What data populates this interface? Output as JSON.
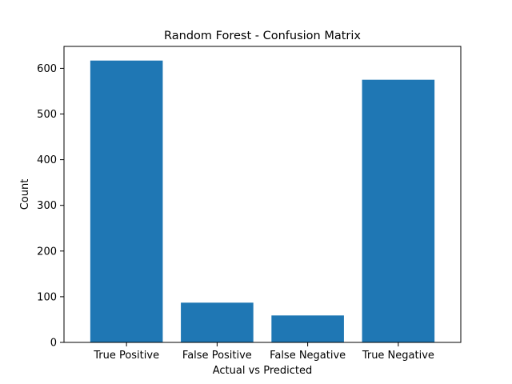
{
  "chart_data": {
    "type": "bar",
    "title": "Random Forest - Confusion Matrix",
    "xlabel": "Actual vs Predicted",
    "ylabel": "Count",
    "categories": [
      "True Positive",
      "False Positive",
      "False Negative",
      "True Negative"
    ],
    "values": [
      617,
      87,
      59,
      575
    ],
    "ylim": [
      0,
      648
    ],
    "yticks": [
      0,
      100,
      200,
      300,
      400,
      500,
      600
    ],
    "grid": false,
    "bar_color": "#1f77b4"
  }
}
